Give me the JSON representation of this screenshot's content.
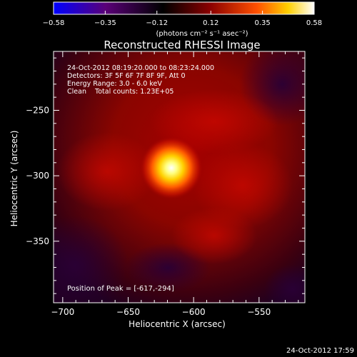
{
  "chart_data": {
    "type": "heatmap",
    "title": "Reconstructed RHESSI Image",
    "xlabel": "Heliocentric X (arcsec)",
    "ylabel": "Heliocentric Y (arcsec)",
    "xlim": [
      -707,
      -515
    ],
    "ylim": [
      -397,
      -205
    ],
    "x_ticks": [
      -700,
      -650,
      -600,
      -550
    ],
    "y_ticks": [
      -250,
      -300,
      -350
    ],
    "tick_labels": {
      "x": [
        "−700",
        "−650",
        "−600",
        "−550"
      ],
      "y": [
        "−250",
        "−300",
        "−350"
      ]
    },
    "colorbar": {
      "min": -0.58,
      "max": 0.58,
      "ticks": [
        -0.58,
        -0.35,
        -0.12,
        0.12,
        0.35,
        0.58
      ],
      "tick_labels": [
        "−0.58",
        "−0.35",
        "−0.12",
        "0.12",
        "0.35",
        "0.58"
      ],
      "unit_label": "(photons cm⁻² s⁻¹ asec⁻²)",
      "colormap": [
        "#0000ff",
        "#5a0078",
        "#000000",
        "#8a0000",
        "#ff5000",
        "#ffd000",
        "#ffffff"
      ]
    },
    "peak": {
      "x": -617,
      "y": -294,
      "value": 0.58
    },
    "annotations": [
      "24-Oct-2012 08:19:20.000 to 08:23:24.000",
      "Detectors: 3F 5F 6F 7F 8F 9F, Att 0",
      "Energy Range: 3.0 - 6.0 keV",
      "Clean    Total counts: 1.23E+05"
    ],
    "peak_label": "Position of Peak = [-617,-294]",
    "grid": false
  },
  "timestamp": "24-Oct-2012 17:59"
}
